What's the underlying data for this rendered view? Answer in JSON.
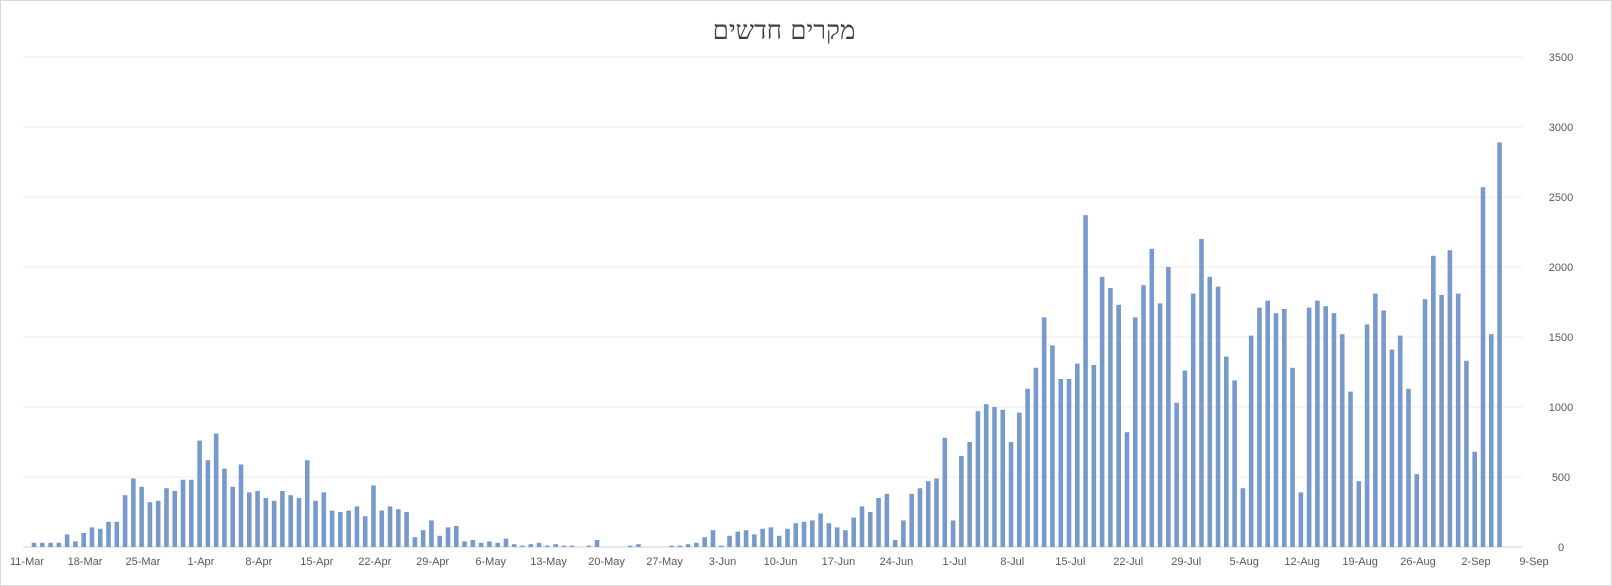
{
  "chart_data": {
    "type": "bar",
    "title": "מקרים חדשים",
    "xlabel": "",
    "ylabel": "",
    "ylim": [
      0,
      3500
    ],
    "y_ticks": [
      0,
      500,
      1000,
      1500,
      2000,
      2500,
      3000,
      3500
    ],
    "y_axis_side": "right",
    "grid": true,
    "legend": "none",
    "x_tick_labels": [
      "11-Mar",
      "18-Mar",
      "25-Mar",
      "1-Apr",
      "8-Apr",
      "15-Apr",
      "22-Apr",
      "29-Apr",
      "6-May",
      "13-May",
      "20-May",
      "27-May",
      "3-Jun",
      "10-Jun",
      "17-Jun",
      "24-Jun",
      "1-Jul",
      "8-Jul",
      "15-Jul",
      "22-Jul",
      "29-Jul",
      "5-Aug",
      "12-Aug",
      "19-Aug",
      "26-Aug",
      "2-Sep",
      "9-Sep"
    ],
    "x_start": "11-Mar",
    "bar_color": "#7799cc",
    "values": [
      30,
      30,
      30,
      30,
      90,
      40,
      100,
      140,
      130,
      180,
      180,
      370,
      490,
      430,
      320,
      330,
      420,
      400,
      480,
      480,
      760,
      620,
      810,
      560,
      430,
      590,
      390,
      400,
      350,
      330,
      400,
      370,
      350,
      620,
      330,
      390,
      260,
      250,
      260,
      290,
      220,
      440,
      260,
      290,
      270,
      250,
      70,
      120,
      190,
      80,
      140,
      150,
      40,
      50,
      30,
      40,
      30,
      60,
      20,
      10,
      20,
      30,
      10,
      20,
      10,
      10,
      0,
      10,
      50,
      0,
      0,
      0,
      10,
      20,
      0,
      0,
      0,
      10,
      10,
      20,
      30,
      70,
      120,
      10,
      80,
      110,
      120,
      90,
      130,
      140,
      80,
      130,
      170,
      180,
      190,
      240,
      170,
      140,
      120,
      210,
      290,
      250,
      350,
      380,
      50,
      190,
      380,
      420,
      470,
      490,
      780,
      190,
      650,
      750,
      970,
      1020,
      1000,
      980,
      750,
      960,
      1130,
      1280,
      1640,
      1440,
      1200,
      1200,
      1310,
      2370,
      1300,
      1930,
      1850,
      1730,
      820,
      1640,
      1870,
      2130,
      1740,
      2000,
      1030,
      1260,
      1810,
      2200,
      1930,
      1860,
      1360,
      1190,
      420,
      1510,
      1710,
      1760,
      1670,
      1700,
      1280,
      390,
      1710,
      1760,
      1720,
      1670,
      1520,
      1110,
      470,
      1590,
      1810,
      1690,
      1410,
      1510,
      1130,
      520,
      1770,
      2080,
      1800,
      2120,
      1810,
      1330,
      680,
      2570,
      1520,
      2890
    ]
  }
}
